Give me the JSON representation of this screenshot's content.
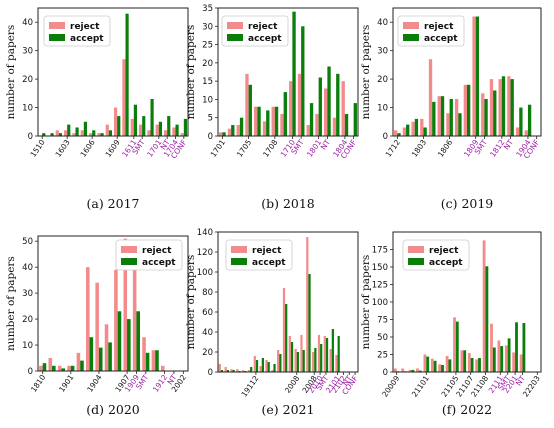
{
  "figure": {
    "legend": [
      {
        "label": "reject",
        "color": "#f28b8b"
      },
      {
        "label": "accept",
        "color": "#0a7d0a"
      }
    ],
    "highlight_color": "#9b1fa3"
  },
  "chart_data": [
    {
      "type": "bar",
      "caption": "(a) 2017",
      "ylabel": "number of papers",
      "ylim": [
        0,
        45
      ],
      "yticks": [
        0,
        10,
        20,
        30,
        40
      ],
      "xlabels": [
        {
          "text": "1510",
          "pos": 0,
          "highlight": false
        },
        {
          "text": "1603",
          "pos": 3,
          "highlight": false
        },
        {
          "text": "1606",
          "pos": 6,
          "highlight": false
        },
        {
          "text": "1609",
          "pos": 9,
          "highlight": false
        },
        {
          "text": "1611",
          "pos": 11,
          "highlight": true
        },
        {
          "text": "SMT",
          "pos": 12,
          "highlight": true
        },
        {
          "text": "1701",
          "pos": 14,
          "highlight": true
        },
        {
          "text": "NT",
          "pos": 15,
          "highlight": true
        },
        {
          "text": "1704",
          "pos": 16,
          "highlight": true
        },
        {
          "text": "CONF",
          "pos": 17,
          "highlight": true
        }
      ],
      "series": [
        {
          "name": "reject",
          "values": [
            0,
            0,
            2,
            2,
            1,
            2,
            1,
            1,
            4,
            10,
            27,
            6,
            4,
            2,
            4,
            2,
            3,
            1
          ]
        },
        {
          "name": "accept",
          "values": [
            1,
            1,
            1,
            4,
            3,
            5,
            2,
            1,
            2,
            7,
            43,
            11,
            7,
            13,
            5,
            7,
            4,
            6
          ]
        }
      ]
    },
    {
      "type": "bar",
      "caption": "(b) 2018",
      "ylabel": "number of papers",
      "ylim": [
        0,
        35
      ],
      "yticks": [
        0,
        5,
        10,
        15,
        20,
        25,
        30,
        35
      ],
      "xlabels": [
        {
          "text": "1701",
          "pos": 0,
          "highlight": false
        },
        {
          "text": "1705",
          "pos": 3,
          "highlight": false
        },
        {
          "text": "1708",
          "pos": 6,
          "highlight": false
        },
        {
          "text": "1710",
          "pos": 8,
          "highlight": true
        },
        {
          "text": "SMT",
          "pos": 9,
          "highlight": true
        },
        {
          "text": "1801",
          "pos": 11,
          "highlight": true
        },
        {
          "text": "NT",
          "pos": 12,
          "highlight": true
        },
        {
          "text": "1804",
          "pos": 14,
          "highlight": true
        },
        {
          "text": "CONF",
          "pos": 15,
          "highlight": true
        }
      ],
      "series": [
        {
          "name": "reject",
          "values": [
            1,
            2,
            3,
            17,
            8,
            4,
            8,
            6,
            15,
            17,
            3,
            6,
            13,
            5,
            15,
            0
          ]
        },
        {
          "name": "accept",
          "values": [
            1,
            3,
            5,
            14,
            8,
            7,
            8,
            12,
            34,
            30,
            9,
            16,
            19,
            17,
            6,
            9
          ]
        }
      ]
    },
    {
      "type": "bar",
      "caption": "(c) 2019",
      "ylabel": "number of papers",
      "ylim": [
        0,
        45
      ],
      "yticks": [
        0,
        10,
        20,
        30,
        40
      ],
      "xlabels": [
        {
          "text": "1712",
          "pos": 0,
          "highlight": false
        },
        {
          "text": "1803",
          "pos": 3,
          "highlight": false
        },
        {
          "text": "1806",
          "pos": 6,
          "highlight": false
        },
        {
          "text": "1809",
          "pos": 9,
          "highlight": true
        },
        {
          "text": "SMT",
          "pos": 10,
          "highlight": true
        },
        {
          "text": "1812",
          "pos": 12,
          "highlight": true
        },
        {
          "text": "NT",
          "pos": 13,
          "highlight": true
        },
        {
          "text": "1904",
          "pos": 15,
          "highlight": true
        },
        {
          "text": "CONF",
          "pos": 16,
          "highlight": true
        }
      ],
      "series": [
        {
          "name": "reject",
          "values": [
            2,
            3,
            5,
            6,
            27,
            14,
            8,
            13,
            18,
            42,
            15,
            20,
            20,
            21,
            3,
            2,
            0
          ]
        },
        {
          "name": "accept",
          "values": [
            1,
            4,
            6,
            3,
            12,
            14,
            13,
            8,
            18,
            42,
            13,
            16,
            21,
            20,
            10,
            11,
            0
          ]
        }
      ]
    },
    {
      "type": "bar",
      "caption": "(d) 2020",
      "ylabel": "number of papers",
      "ylim": [
        0,
        52
      ],
      "yticks": [
        0,
        10,
        20,
        30,
        40,
        50
      ],
      "xlabels": [
        {
          "text": "1810",
          "pos": 0,
          "highlight": false
        },
        {
          "text": "1901",
          "pos": 3,
          "highlight": false
        },
        {
          "text": "1904",
          "pos": 6,
          "highlight": false
        },
        {
          "text": "1907",
          "pos": 9,
          "highlight": false
        },
        {
          "text": "1909",
          "pos": 10,
          "highlight": true
        },
        {
          "text": "SMT",
          "pos": 11,
          "highlight": true
        },
        {
          "text": "1912",
          "pos": 13,
          "highlight": true
        },
        {
          "text": "NT",
          "pos": 14,
          "highlight": true
        },
        {
          "text": "2002",
          "pos": 15,
          "highlight": false
        }
      ],
      "series": [
        {
          "name": "reject",
          "values": [
            2,
            5,
            2,
            2,
            7,
            40,
            34,
            18,
            39,
            51,
            39,
            13,
            8,
            2,
            0,
            0
          ]
        },
        {
          "name": "accept",
          "values": [
            3,
            2,
            1,
            2,
            4,
            13,
            9,
            11,
            23,
            20,
            23,
            7,
            8,
            0,
            0,
            0
          ]
        }
      ]
    },
    {
      "type": "bar",
      "caption": "(e) 2021",
      "ylabel": "number of papers",
      "ylim": [
        0,
        140
      ],
      "yticks": [
        0,
        20,
        40,
        60,
        80,
        100,
        120,
        140
      ],
      "xlabels": [
        {
          "text": "19112",
          "pos": 6,
          "highlight": false
        },
        {
          "text": "2008",
          "pos": 13,
          "highlight": false
        },
        {
          "text": "2008",
          "pos": 16,
          "highlight": false
        },
        {
          "text": "2010",
          "pos": 17,
          "highlight": true
        },
        {
          "text": "SMT",
          "pos": 18,
          "highlight": true
        },
        {
          "text": "2101",
          "pos": 20,
          "highlight": true
        },
        {
          "text": "2102",
          "pos": 21,
          "highlight": true
        },
        {
          "text": "NT",
          "pos": 22,
          "highlight": true
        },
        {
          "text": "CONF",
          "pos": 23,
          "highlight": true
        }
      ],
      "series": [
        {
          "name": "reject",
          "values": [
            8,
            5,
            3,
            3,
            2,
            2,
            16,
            6,
            12,
            2,
            22,
            84,
            36,
            23,
            37,
            135,
            20,
            37,
            36,
            23,
            17,
            0,
            0,
            0
          ]
        },
        {
          "name": "accept",
          "values": [
            2,
            2,
            2,
            1,
            1,
            5,
            12,
            14,
            10,
            8,
            18,
            68,
            30,
            20,
            22,
            98,
            24,
            28,
            34,
            43,
            36,
            0,
            0,
            0
          ]
        }
      ]
    },
    {
      "type": "bar",
      "caption": "(f) 2022",
      "ylabel": "number of papers",
      "ylim": [
        0,
        200
      ],
      "yticks": [
        0,
        25,
        50,
        75,
        100,
        125,
        150,
        175
      ],
      "xlabels": [
        {
          "text": "20009",
          "pos": 0,
          "highlight": false
        },
        {
          "text": "21101",
          "pos": 4,
          "highlight": false
        },
        {
          "text": "21105",
          "pos": 8,
          "highlight": false
        },
        {
          "text": "21107",
          "pos": 10,
          "highlight": false
        },
        {
          "text": "21108",
          "pos": 12,
          "highlight": false
        },
        {
          "text": "2111",
          "pos": 14,
          "highlight": true
        },
        {
          "text": "SMT",
          "pos": 15,
          "highlight": true
        },
        {
          "text": "2201",
          "pos": 16,
          "highlight": true
        },
        {
          "text": "NT",
          "pos": 17,
          "highlight": true
        },
        {
          "text": "22203",
          "pos": 19,
          "highlight": false
        }
      ],
      "series": [
        {
          "name": "reject",
          "values": [
            5,
            5,
            3,
            5,
            25,
            19,
            11,
            23,
            78,
            31,
            27,
            18,
            188,
            69,
            45,
            38,
            28,
            25,
            0,
            0
          ]
        },
        {
          "name": "accept",
          "values": [
            1,
            1,
            3,
            2,
            22,
            16,
            10,
            18,
            72,
            31,
            20,
            20,
            151,
            35,
            37,
            48,
            71,
            70,
            0,
            0
          ]
        }
      ]
    }
  ]
}
